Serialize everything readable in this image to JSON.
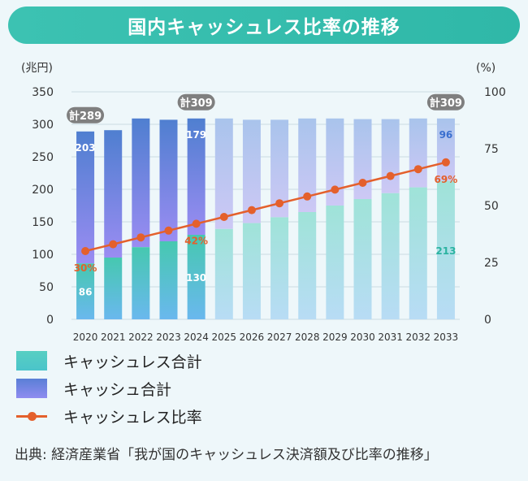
{
  "title": "国内キャッシュレス比率の推移",
  "source": "出典: 経済産業省「我が国のキャッシュレス決済額及び比率の推移」",
  "legend": [
    {
      "label": "キャッシュレス合計",
      "kind": "cashless"
    },
    {
      "label": "キャッシュ合計",
      "kind": "cash"
    },
    {
      "label": "キャッシュレス比率",
      "kind": "ratio"
    }
  ],
  "colors": {
    "cashless": "#4fcbc0",
    "cash": "#6f83e6",
    "ratio_line": "#e4602c",
    "callout_bg": "#7f7f7f",
    "title_bg": "#33bcab"
  },
  "chart_data": {
    "type": "bar",
    "stacked": true,
    "title": "国内キャッシュレス比率の推移",
    "left_axis_unit": "(兆円)",
    "right_axis_unit": "(%)",
    "left_ylim": [
      0,
      350
    ],
    "left_ticks": [
      "0",
      "50",
      "100",
      "150",
      "200",
      "250",
      "300",
      "350"
    ],
    "right_ylim": [
      0,
      100
    ],
    "right_ticks": [
      "0",
      "25",
      "50",
      "75",
      "100"
    ],
    "categories": [
      "2020",
      "2021",
      "2022",
      "2023",
      "2024",
      "2025",
      "2026",
      "2027",
      "2028",
      "2029",
      "2030",
      "2031",
      "2032",
      "2033"
    ],
    "projected_from": "2025",
    "series": [
      {
        "name": "キャッシュレス合計",
        "axis": "left",
        "values": [
          86,
          95,
          111,
          120,
          130,
          139,
          148,
          157,
          165,
          175,
          185,
          194,
          203,
          213
        ]
      },
      {
        "name": "キャッシュ合計",
        "axis": "left",
        "values": [
          203,
          196,
          198,
          187,
          179,
          170,
          159,
          150,
          144,
          134,
          123,
          114,
          106,
          96
        ]
      },
      {
        "name": "キャッシュレス比率",
        "type": "line",
        "axis": "right",
        "values": [
          30,
          33,
          36,
          39,
          42,
          45,
          48,
          51,
          54,
          57,
          60,
          63,
          66,
          69
        ]
      }
    ],
    "data_labels": [
      {
        "year": "2020",
        "cashless": "86",
        "cash": "203",
        "ratio": "30%",
        "total": "計289"
      },
      {
        "year": "2024",
        "cashless": "130",
        "cash": "179",
        "ratio": "42%",
        "total": "計309"
      },
      {
        "year": "2033",
        "cashless": "213",
        "cash": "96",
        "ratio": "69%",
        "total": "計309"
      }
    ],
    "grid": true
  }
}
